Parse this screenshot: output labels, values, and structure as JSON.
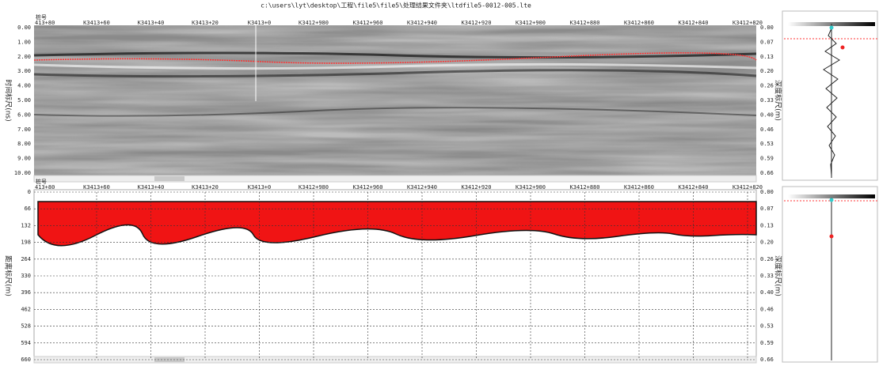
{
  "title": "c:\\users\\lyt\\desktop\\工程\\file5\\file5\\处理结果文件夹\\ltdfile5-0012-005.lte",
  "top_panel": {
    "station_label": "桩号",
    "stations": [
      "413+80",
      "K3413+60",
      "K3413+40",
      "K3413+20",
      "K3413+0",
      "K3412+980",
      "K3412+960",
      "K3412+940",
      "K3412+920",
      "K3412+900",
      "K3412+880",
      "K3412+860",
      "K3412+840",
      "K3412+820"
    ],
    "left_axis_label": "时间标尺(ns)",
    "left_ticks": [
      "0.00",
      "1.00",
      "2.00",
      "3.00",
      "4.00",
      "5.00",
      "6.00",
      "7.00",
      "8.00",
      "9.00",
      "10.00"
    ],
    "right_axis_label": "深度标尺(m)",
    "right_ticks": [
      "0.00",
      "0.07",
      "0.13",
      "0.20",
      "0.26",
      "0.33",
      "0.40",
      "0.46",
      "0.53",
      "0.59",
      "0.66"
    ]
  },
  "bottom_panel": {
    "station_label": "桩号",
    "stations": [
      "413+80",
      "K3413+60",
      "K3413+40",
      "K3413+20",
      "K3413+0",
      "K3412+980",
      "K3412+960",
      "K3412+940",
      "K3412+920",
      "K3412+900",
      "K3412+880",
      "K3412+860",
      "K3412+840",
      "K3412+820"
    ],
    "left_axis_label": "距离标尺(m)",
    "left_ticks": [
      "0",
      "66",
      "132",
      "198",
      "264",
      "330",
      "396",
      "462",
      "528",
      "594",
      "660"
    ],
    "right_axis_label": "深度标尺(m)",
    "right_ticks": [
      "0.00",
      "0.07",
      "0.13",
      "0.20",
      "0.26",
      "0.33",
      "0.40",
      "0.46",
      "0.53",
      "0.59",
      "0.66"
    ]
  }
}
